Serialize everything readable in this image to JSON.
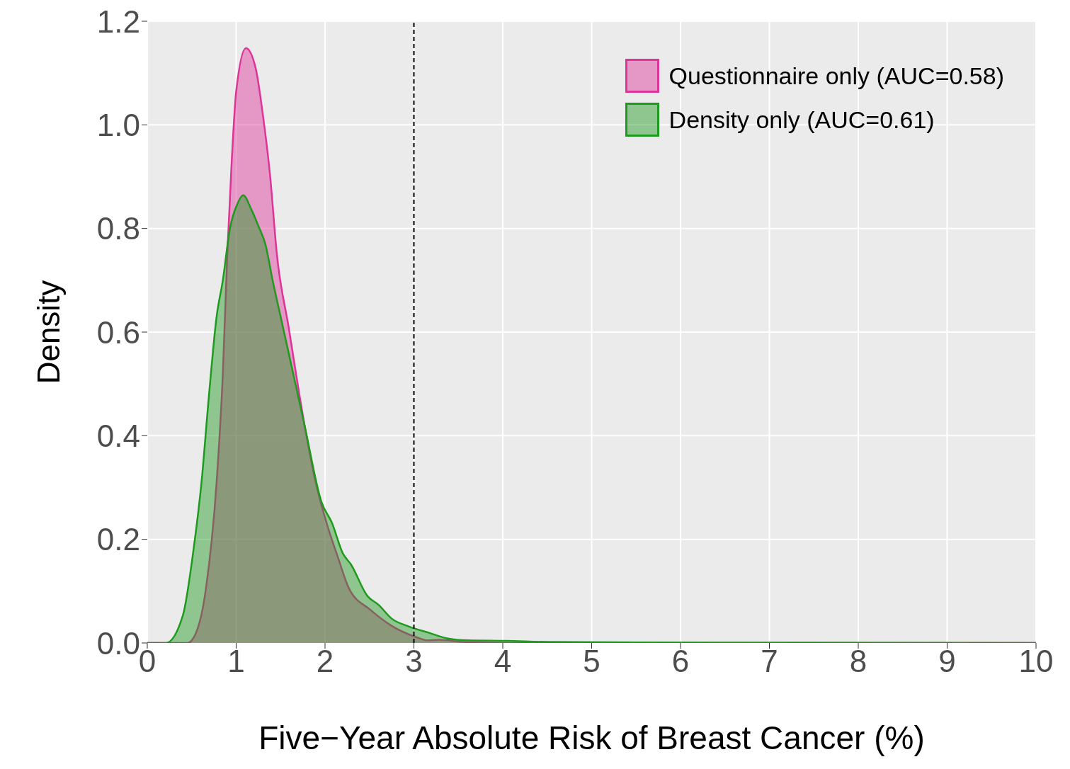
{
  "chart_data": {
    "type": "area",
    "xlabel": "Five−Year Absolute Risk of Breast Cancer (%)",
    "ylabel": "Density",
    "xlim": [
      0,
      10
    ],
    "xticks": [
      0,
      1,
      2,
      3,
      4,
      5,
      6,
      7,
      8,
      9,
      10
    ],
    "ylim": [
      0,
      1.2
    ],
    "yticks": [
      {
        "value": 0,
        "label": "0.0"
      },
      0.2,
      0.4,
      0.6,
      0.8,
      {
        "value": 1,
        "label": "1.0"
      },
      1.2
    ],
    "grid": true,
    "legend": "top right",
    "line_style": "solid",
    "ref_lines": [
      {
        "axis": "x",
        "value": 3,
        "color": "#000000",
        "line_style": "dashed"
      }
    ],
    "series": [
      {
        "name": "Questionnaire only (AUC=0.58)",
        "color": "#dd3497",
        "x": [
          0,
          0.45,
          0.5,
          0.66,
          0.78,
          0.85,
          0.9,
          0.95,
          1.0,
          1.11,
          1.22,
          1.3,
          1.38,
          1.46,
          1.59,
          1.77,
          1.89,
          2.02,
          2.14,
          2.27,
          2.51,
          2.75,
          3.03,
          3.15,
          3.28,
          3.56,
          4,
          10
        ],
        "values": [
          0,
          0,
          0.005,
          0.105,
          0.31,
          0.52,
          0.75,
          0.93,
          1.064,
          1.148,
          1.109,
          1.02,
          0.905,
          0.747,
          0.61,
          0.42,
          0.314,
          0.23,
          0.168,
          0.105,
          0.064,
          0.033,
          0.011,
          0.005,
          0.006,
          0.002,
          0,
          0
        ]
      },
      {
        "name": "Density only (AUC=0.61)",
        "color": "#1e9a1e",
        "x": [
          0,
          0.21,
          0.4,
          0.52,
          0.61,
          0.69,
          0.78,
          0.85,
          0.93,
          1.01,
          1.08,
          1.17,
          1.25,
          1.33,
          1.41,
          1.5,
          1.77,
          1.96,
          2.08,
          2.2,
          2.29,
          2.48,
          2.6,
          2.75,
          2.94,
          3.18,
          3.37,
          3.61,
          4.04,
          4.5,
          5.5,
          10
        ],
        "values": [
          0,
          0,
          0.053,
          0.18,
          0.31,
          0.47,
          0.63,
          0.7,
          0.8,
          0.846,
          0.864,
          0.837,
          0.805,
          0.769,
          0.7,
          0.63,
          0.42,
          0.272,
          0.231,
          0.173,
          0.152,
          0.09,
          0.074,
          0.047,
          0.032,
          0.019,
          0.009,
          0.005,
          0.004,
          0.002,
          0.001,
          0
        ]
      }
    ]
  }
}
